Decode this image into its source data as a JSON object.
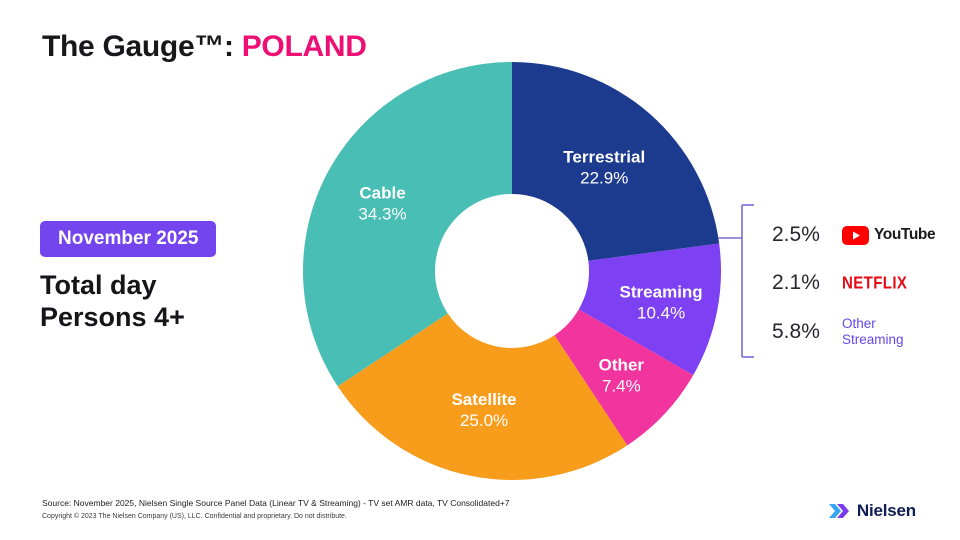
{
  "header": {
    "title_prefix": "The Gauge™:",
    "title_region": "POLAND"
  },
  "left_panel": {
    "period_badge": "November 2025",
    "audience_line1": "Total day",
    "audience_line2": "Persons 4+"
  },
  "chart_data": {
    "type": "pie",
    "subtype": "donut",
    "title": "The Gauge™: POLAND",
    "period": "November 2025",
    "audience": "Total day Persons 4+",
    "units": "% share of total TV usage",
    "start_angle_deg": 0,
    "direction": "clockwise",
    "slices": [
      {
        "label": "Terrestrial",
        "value": 22.9,
        "display": "22.9%",
        "color": "#1C3B8E",
        "label_r": 140
      },
      {
        "label": "Streaming",
        "value": 10.4,
        "display": "10.4%",
        "color": "#7D40F2",
        "label_r": 152
      },
      {
        "label": "Other",
        "value": 7.4,
        "display": "7.4%",
        "color": "#F2349E",
        "label_r": 150
      },
      {
        "label": "Satellite",
        "value": 25.0,
        "display": "25.0%",
        "color": "#F89C1C",
        "label_r": 140
      },
      {
        "label": "Cable",
        "value": 34.3,
        "display": "34.3%",
        "color": "#48BEB4",
        "label_r": 147
      }
    ],
    "streaming_breakdown": [
      {
        "label": "YouTube",
        "value": 2.5,
        "display": "2.5%"
      },
      {
        "label": "NETFLIX",
        "value": 2.1,
        "display": "2.1%"
      },
      {
        "label": "Other Streaming",
        "value": 5.8,
        "display": "5.8%"
      }
    ]
  },
  "footer": {
    "source_line": "Source: November 2025, Nielsen Single Source Panel Data (Linear TV & Streaming) - TV set AMR data, TV Consolidated+7",
    "copyright_line": "Copyright © 2023 The Nielsen Company (US), LLC. Confidential and proprietary. Do not distribute.",
    "logo_text": "Nielsen"
  },
  "colors": {
    "title_region": "#EC1075",
    "badge_bg": "#7444EE",
    "netflix_red": "#E50914",
    "youtube_red": "#FF0000",
    "other_streaming_text": "#6448E8",
    "bracket": "#7C6BD6",
    "nielsen_wordmark": "#101C54"
  }
}
